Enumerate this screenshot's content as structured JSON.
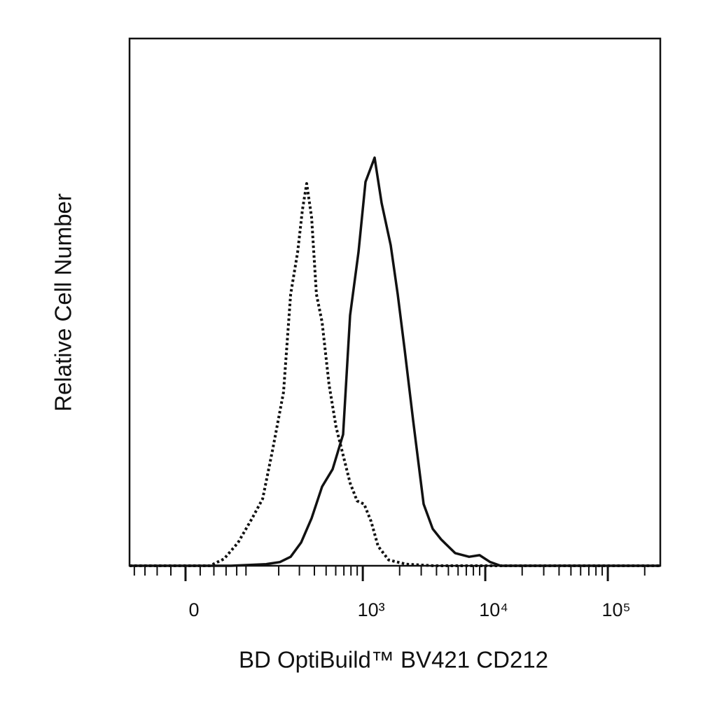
{
  "chart_data": {
    "type": "line",
    "x_label": "BD OptiBuild™ BV421 CD212",
    "y_label": "Relative Cell Number",
    "xscale": "arcsinh",
    "xlim": [
      -90,
      268000
    ],
    "ylim": [
      0,
      100
    ],
    "xticks": [
      0,
      {
        "value": 1000,
        "label": "10³"
      },
      {
        "value": 10000,
        "label": "10⁴"
      },
      {
        "value": 100000,
        "label": "10⁵"
      }
    ],
    "xminorticks": [
      -80,
      -60,
      -40,
      -20,
      20,
      40,
      60,
      80,
      100,
      200,
      300,
      400,
      500,
      600,
      700,
      800,
      900,
      2000,
      3000,
      4000,
      5000,
      6000,
      7000,
      8000,
      9000,
      20000,
      30000,
      40000,
      50000,
      60000,
      70000,
      80000,
      90000,
      200000
    ],
    "series": [
      {
        "style": "dotted",
        "color": "#111111",
        "x": [
          -90,
          -4.7,
          34,
          56.5,
          82.8,
          115,
          144,
          178,
          220,
          253,
          290,
          318,
          345,
          379,
          416,
          463,
          529,
          604,
          690,
          787,
          898,
          1025,
          1169,
          1334,
          1625,
          2258,
          3823,
          268000
        ],
        "values": [
          0,
          0,
          0,
          1.3,
          4.4,
          9.0,
          12.7,
          22.3,
          32.9,
          51.5,
          59.5,
          67.5,
          72.5,
          66.1,
          51.5,
          46.2,
          34.3,
          26.3,
          21.0,
          15.7,
          12.3,
          11.7,
          8.4,
          3.7,
          1.1,
          0.3,
          0,
          0
        ]
      },
      {
        "style": "solid",
        "color": "#111111",
        "x": [
          -90,
          69,
          155,
          205,
          253,
          310,
          379,
          463,
          565,
          690,
          787,
          922,
          1052,
          1249,
          1424,
          1690,
          1928,
          2200,
          2576,
          3139,
          3723,
          4360,
          5674,
          7382,
          8986,
          10955,
          13350,
          268000
        ],
        "values": [
          0,
          0,
          0.3,
          0.7,
          1.7,
          4.4,
          9.0,
          15.0,
          18.3,
          24.9,
          47.5,
          59.5,
          72.8,
          77.4,
          68.8,
          60.8,
          51.5,
          40.9,
          27.6,
          11.7,
          7.0,
          5.0,
          2.4,
          1.7,
          2.0,
          0.7,
          0,
          0
        ]
      }
    ]
  }
}
